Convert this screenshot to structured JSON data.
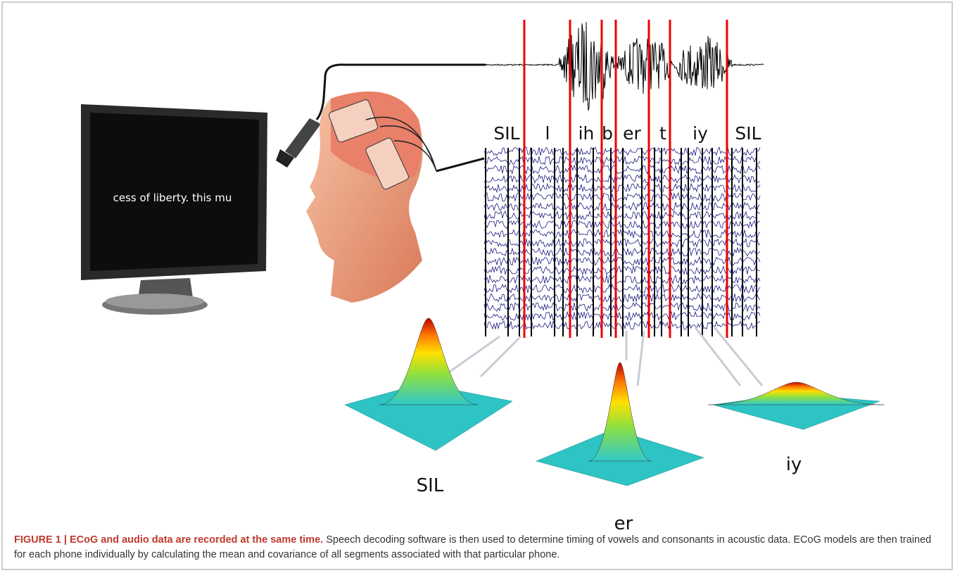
{
  "monitor_text": "cess of liberty. this mu",
  "phones": [
    "SIL",
    "l",
    "ih",
    "b",
    "er",
    "t",
    "iy",
    "SIL"
  ],
  "models": [
    "SIL",
    "er",
    "iy"
  ],
  "caption": {
    "label": "FIGURE 1 | ECoG and audio data are recorded at the same time.",
    "text": "Speech decoding software is then used to determine timing of vowels and consonants in acoustic data. ECoG models are then trained for each phone individually by calculating the mean and covariance of all segments associated with that particular phone."
  }
}
